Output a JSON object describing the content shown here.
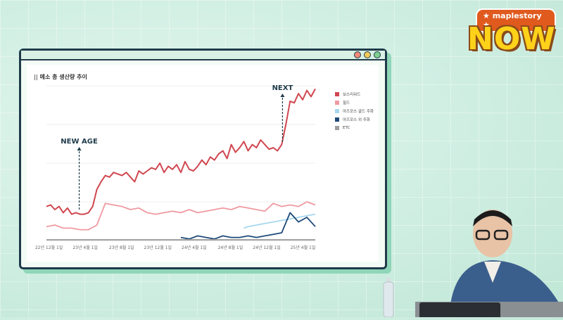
{
  "brand": {
    "badge": "★ maplestory ★",
    "wordmark": "NOW"
  },
  "colors": {
    "boss": "#d0464f",
    "field": "#ef9aa1",
    "arcane_gold": "#a7d8ef",
    "arcane_other": "#1f4a78",
    "etc": "#9e9e9e",
    "window_border": "#1f3b4a"
  },
  "chart_data": {
    "type": "line",
    "title": "메소 총 생산량 추이",
    "xlabel": "",
    "ylabel": "",
    "x_ticks": [
      "22년 12월 1일",
      "23년 4월 1일",
      "23년 8월 1일",
      "23년 12월 1일",
      "24년 4월 1일",
      "24년 8월 1일",
      "24년 12월 1일",
      "25년 4월 1일"
    ],
    "ylim": [
      0,
      100
    ],
    "grid": true,
    "legend_position": "right",
    "annotations": [
      {
        "label": "NEW AGE",
        "x": 3.9
      },
      {
        "label": "NEXT",
        "x": 28.1
      }
    ],
    "series": [
      {
        "name": "보스리워드",
        "color_key": "boss",
        "x": [
          0,
          0.5,
          1,
          1.5,
          2,
          2.5,
          3,
          3.5,
          4,
          4.5,
          5,
          5.5,
          6,
          6.5,
          7,
          7.5,
          8,
          8.5,
          9,
          9.5,
          10,
          10.5,
          11,
          11.5,
          12,
          12.5,
          13,
          13.5,
          14,
          14.5,
          15,
          15.5,
          16,
          16.5,
          17,
          17.5,
          18,
          18.5,
          19,
          19.5,
          20,
          20.5,
          21,
          21.5,
          22,
          22.5,
          23,
          23.5,
          24,
          24.5,
          25,
          25.5,
          26,
          26.5,
          27,
          27.5,
          28,
          28.5,
          29,
          29.5,
          30,
          30.5,
          31,
          31.5,
          32
        ],
        "values": [
          22,
          23,
          20,
          22,
          18,
          21,
          17,
          18,
          17,
          17,
          18,
          22,
          33,
          38,
          42,
          41,
          44,
          43,
          42,
          44,
          41,
          38,
          45,
          43,
          45,
          47,
          46,
          50,
          44,
          48,
          46,
          49,
          44,
          51,
          46,
          45,
          48,
          52,
          49,
          54,
          52,
          56,
          58,
          53,
          62,
          57,
          60,
          64,
          58,
          62,
          60,
          65,
          62,
          59,
          60,
          58,
          62,
          75,
          90,
          89,
          95,
          91,
          97,
          93,
          98
        ],
        "plot_frac": [
          0,
          0.0156,
          0.0313,
          0.0469,
          0.0625,
          0.0781,
          0.0938,
          0.1094,
          0.125,
          0.1406,
          0.1563,
          0.1719,
          0.1875,
          0.2031,
          0.2188,
          0.2344,
          0.25,
          0.2656,
          0.2813,
          0.2969,
          0.3125,
          0.3281,
          0.3438,
          0.3594,
          0.375,
          0.3906,
          0.4063,
          0.4219,
          0.4375,
          0.4531,
          0.4688,
          0.4844,
          0.5,
          0.5156,
          0.5313,
          0.5469,
          0.5625,
          0.5781,
          0.5938,
          0.6094,
          0.625,
          0.6406,
          0.6563,
          0.6719,
          0.6875,
          0.7031,
          0.7188,
          0.7344,
          0.75,
          0.7656,
          0.7813,
          0.7969,
          0.8125,
          0.8281,
          0.8438,
          0.8594,
          0.875,
          0.8906,
          0.9063,
          0.9219,
          0.9375,
          0.9531,
          0.9688,
          0.9844,
          1
        ]
      },
      {
        "name": "필드",
        "color_key": "field",
        "x": [
          0,
          1,
          2,
          3,
          4,
          5,
          6,
          7,
          8,
          9,
          10,
          11,
          12,
          13,
          14,
          15,
          16,
          17,
          18,
          19,
          20,
          21,
          22,
          23,
          24,
          25,
          26,
          27,
          28,
          29,
          30,
          31,
          32
        ],
        "values": [
          9,
          10,
          8,
          8,
          7,
          7,
          10,
          24,
          23,
          22,
          20,
          21,
          18,
          17,
          18,
          19,
          18,
          20,
          18,
          19,
          20,
          21,
          20,
          22,
          21,
          20,
          19,
          24,
          22,
          23,
          22,
          25,
          23
        ]
      },
      {
        "name": "아즈모스 골드 주화",
        "color_key": "arcane_gold",
        "x": [
          23.5,
          24,
          25,
          26,
          27,
          28,
          29,
          30,
          31,
          32
        ],
        "values": [
          8,
          9,
          10,
          11,
          12,
          13,
          14,
          15,
          16,
          17
        ]
      },
      {
        "name": "아즈모스 외 주화",
        "color_key": "arcane_other",
        "x": [
          16,
          17,
          18,
          19,
          20,
          21,
          22,
          23,
          24,
          25,
          26,
          27,
          28,
          29,
          30,
          31,
          32
        ],
        "values": [
          2,
          1,
          3,
          2,
          1,
          3,
          2,
          2,
          3,
          2,
          3,
          4,
          5,
          18,
          12,
          15,
          9
        ]
      },
      {
        "name": "ETC",
        "color_key": "etc",
        "x": [
          0,
          32
        ],
        "values": [
          0.5,
          0.5
        ]
      }
    ]
  }
}
